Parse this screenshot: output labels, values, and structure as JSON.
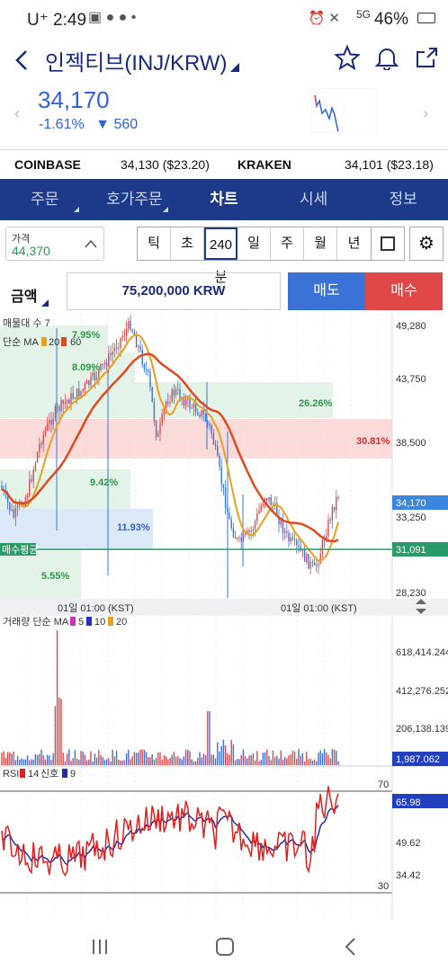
{
  "status": {
    "carrier": "U⁺ 2:49",
    "signal": "5G",
    "battery": "46%"
  },
  "header": {
    "title": "인젝티브(INJ/KRW)"
  },
  "price": {
    "current": "34,170",
    "change_pct": "-1.61%",
    "change_abs": "560"
  },
  "exchanges": [
    {
      "name": "COINBASE",
      "value": "34,130 ($23.20)"
    },
    {
      "name": "KRAKEN",
      "value": "34,101 ($23.18)"
    }
  ],
  "tabs": [
    "주문",
    "호가주문",
    "차트",
    "시세",
    "정보"
  ],
  "toolbar": {
    "price_label": "가격",
    "price_value": "44,370",
    "periods": [
      "틱",
      "초",
      "240분",
      "일",
      "주",
      "월",
      "년"
    ]
  },
  "amount": {
    "label": "금액",
    "value": "75,200,000 KRW",
    "sell": "매도",
    "buy": "매수"
  },
  "main_chart": {
    "legend1": "매물대 수 7",
    "legend2_prefix": "단순 MA",
    "ma_a": "20",
    "ma_b": "60",
    "y_ticks": [
      "49,280",
      "43,750",
      "38,500",
      "33,250",
      "28,230"
    ],
    "current_label": "34,170",
    "avg_label": "31,091",
    "avg_text": "매수평균",
    "vp_labels": [
      "7.95%",
      "8.09%",
      "26.26%",
      "30.81%",
      "9.42%",
      "11.93%",
      "5.55%"
    ],
    "x_labels": [
      "01일 01:00 (KST)",
      "01일 01:00 (KST)"
    ]
  },
  "volume_chart": {
    "legend_prefix": "거래량 단순 MA",
    "ma_5": "5",
    "ma_10": "10",
    "ma_20": "20",
    "y_ticks": [
      "618,414.244",
      "412,276.252",
      "206,138.139"
    ],
    "current_label": "1,987.062"
  },
  "rsi_chart": {
    "legend_prefix": "RSI",
    "rsi_len": "14",
    "signal_label": "신호",
    "signal_len": "9",
    "y_ticks": [
      "70",
      "49.62",
      "34.42",
      "30"
    ],
    "current_label": "65.98"
  },
  "colors": {
    "navy": "#1d3a8a",
    "blue": "#2f62d6",
    "red": "#e04848",
    "ma20": "#e8a020",
    "ma60": "#e04a20"
  }
}
